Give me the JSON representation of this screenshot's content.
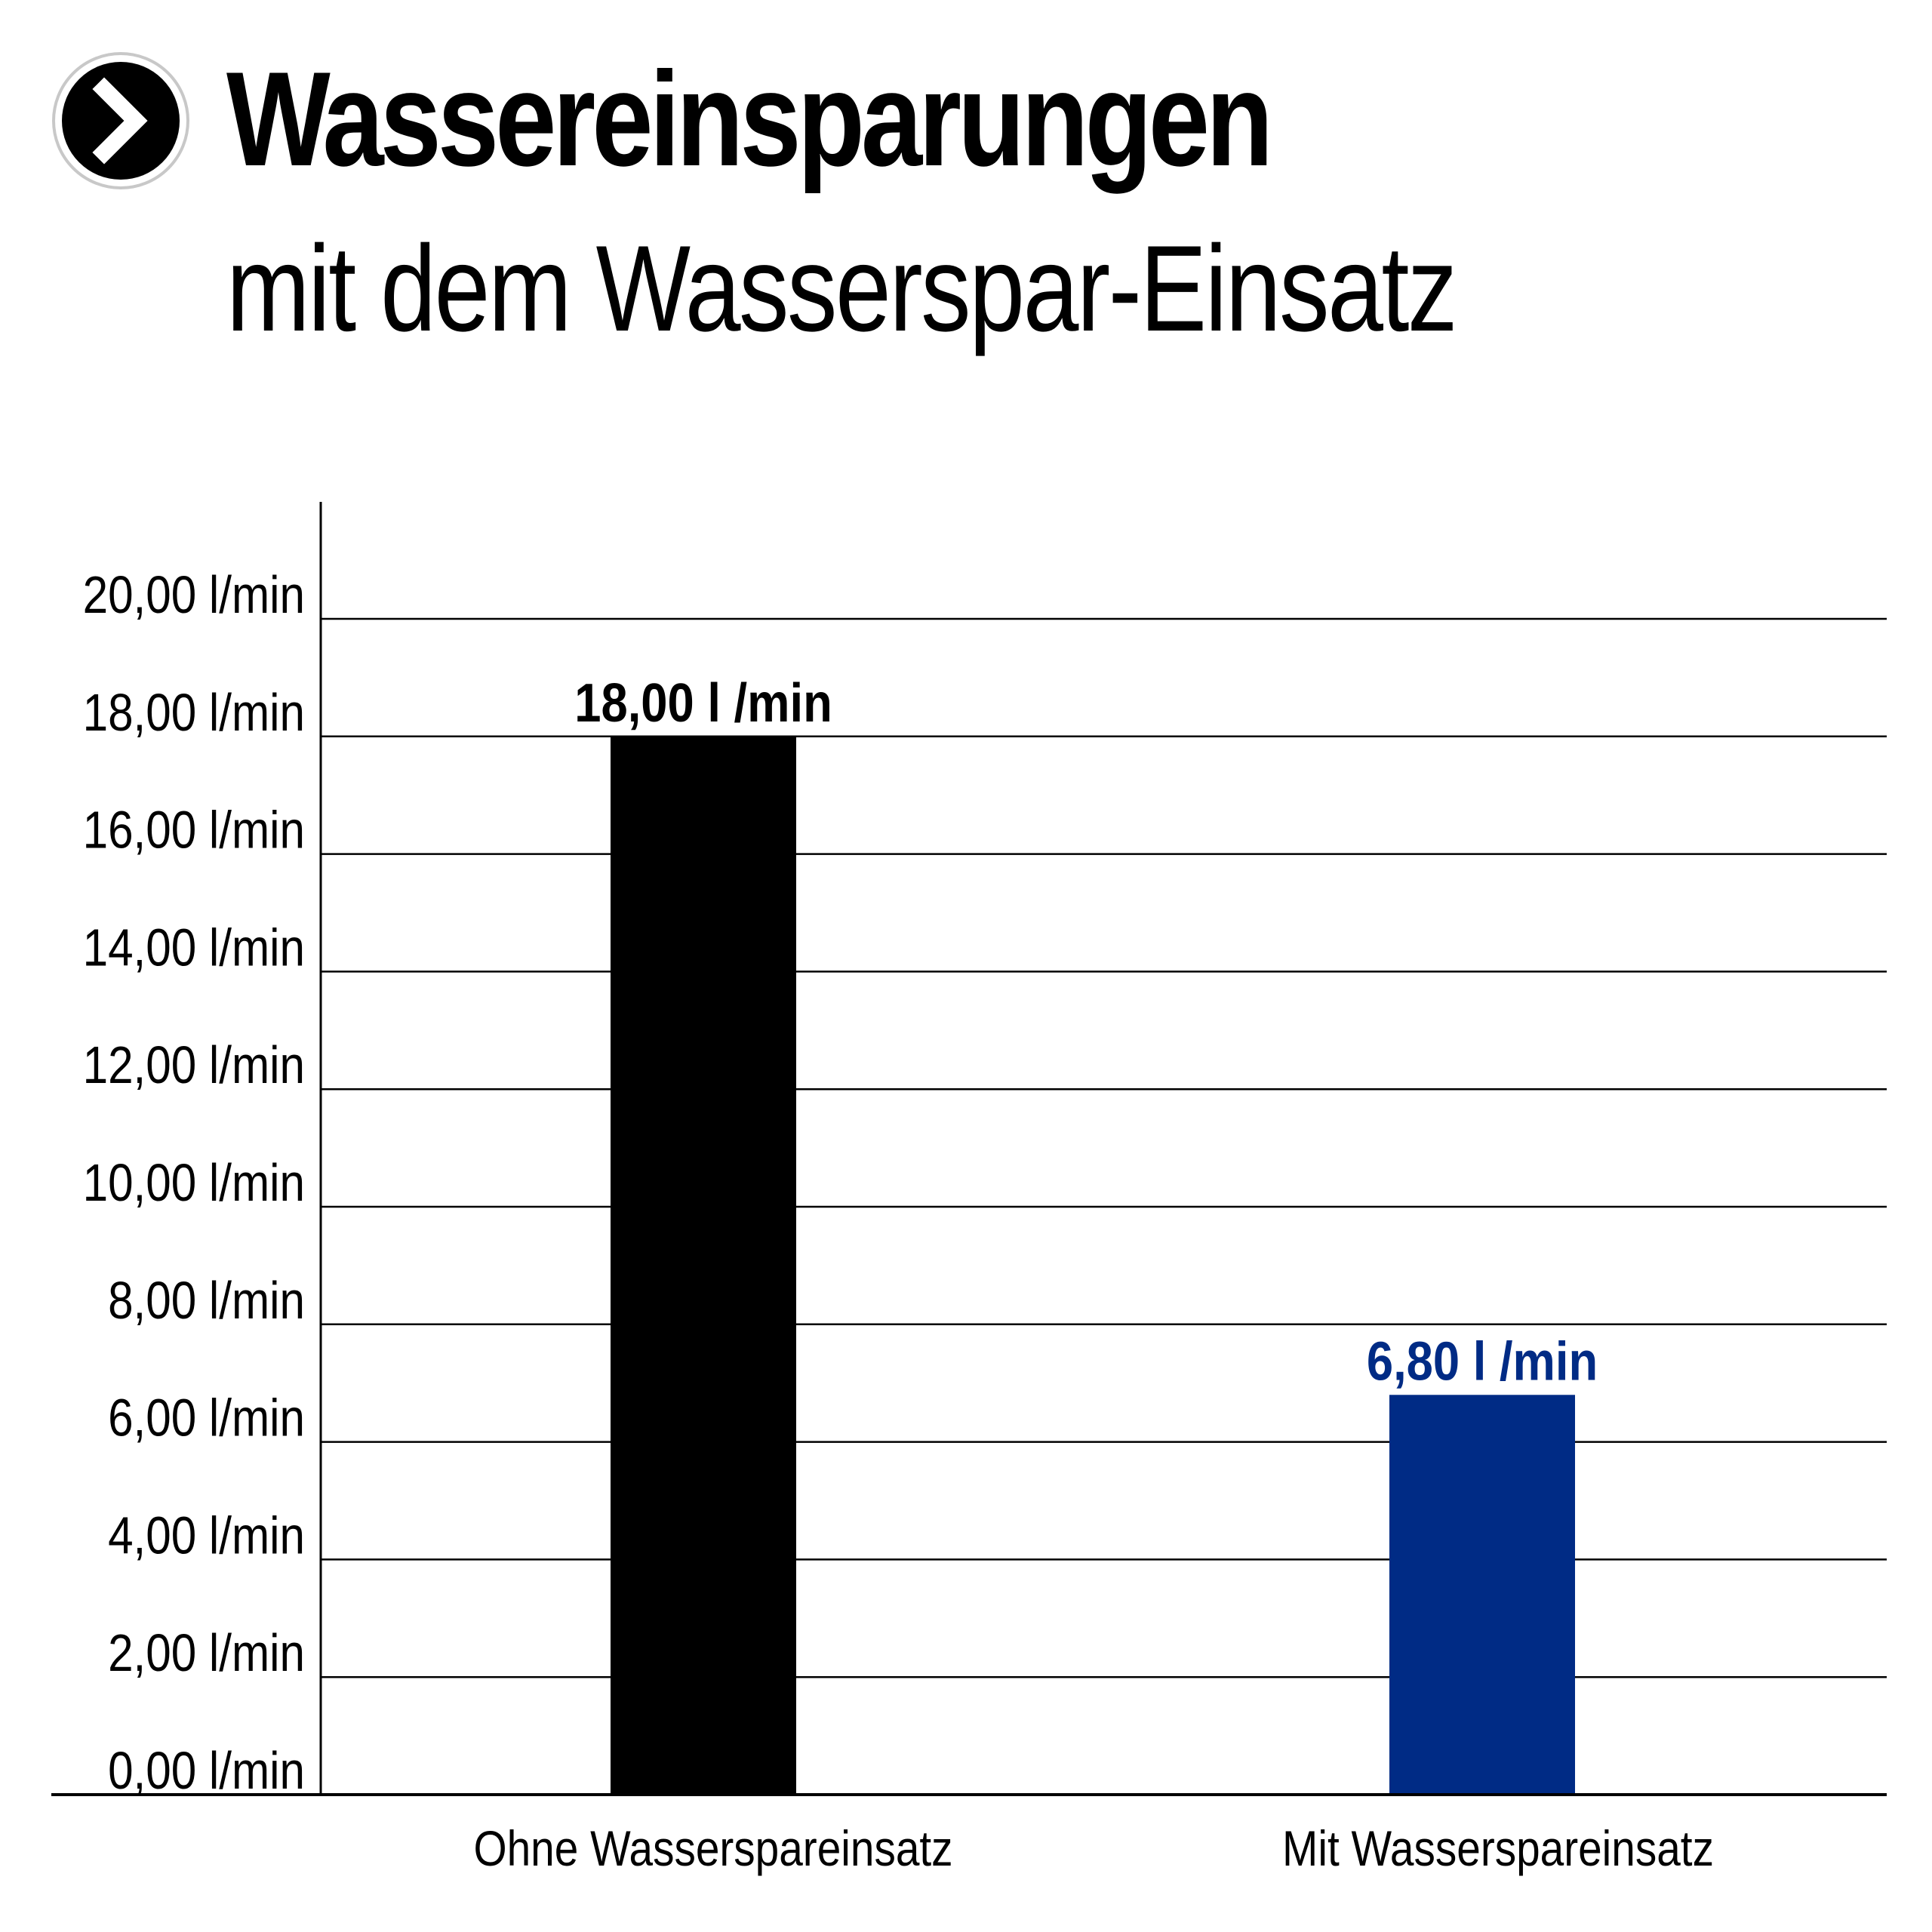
{
  "header": {
    "icon": "chevron-right-icon",
    "title": "Wassereinsparungen",
    "subtitle": "mit dem Wasserspar-Einsatz"
  },
  "chart_data": {
    "type": "bar",
    "categories": [
      "Ohne Wasserspareinsatz",
      "Mit Wasserspareinsatz"
    ],
    "values": [
      18.0,
      6.8
    ],
    "data_labels": [
      "18,00 l /min",
      "6,80 l /min"
    ],
    "bar_colors": [
      "#000000",
      "#002b85"
    ],
    "ylim": [
      0,
      22
    ],
    "yticks": [
      0,
      2,
      4,
      6,
      8,
      10,
      12,
      14,
      16,
      18,
      20
    ],
    "ytick_labels": [
      "0,00 l/min",
      "2,00 l/min",
      "4,00 l/min",
      "6,00 l/min",
      "8,00 l/min",
      "10,00 l/min",
      "12,00 l/min",
      "14,00 l/min",
      "16,00 l/min",
      "18,00 l/min",
      "20,00 l/min"
    ],
    "grid": true,
    "legend": "none"
  }
}
